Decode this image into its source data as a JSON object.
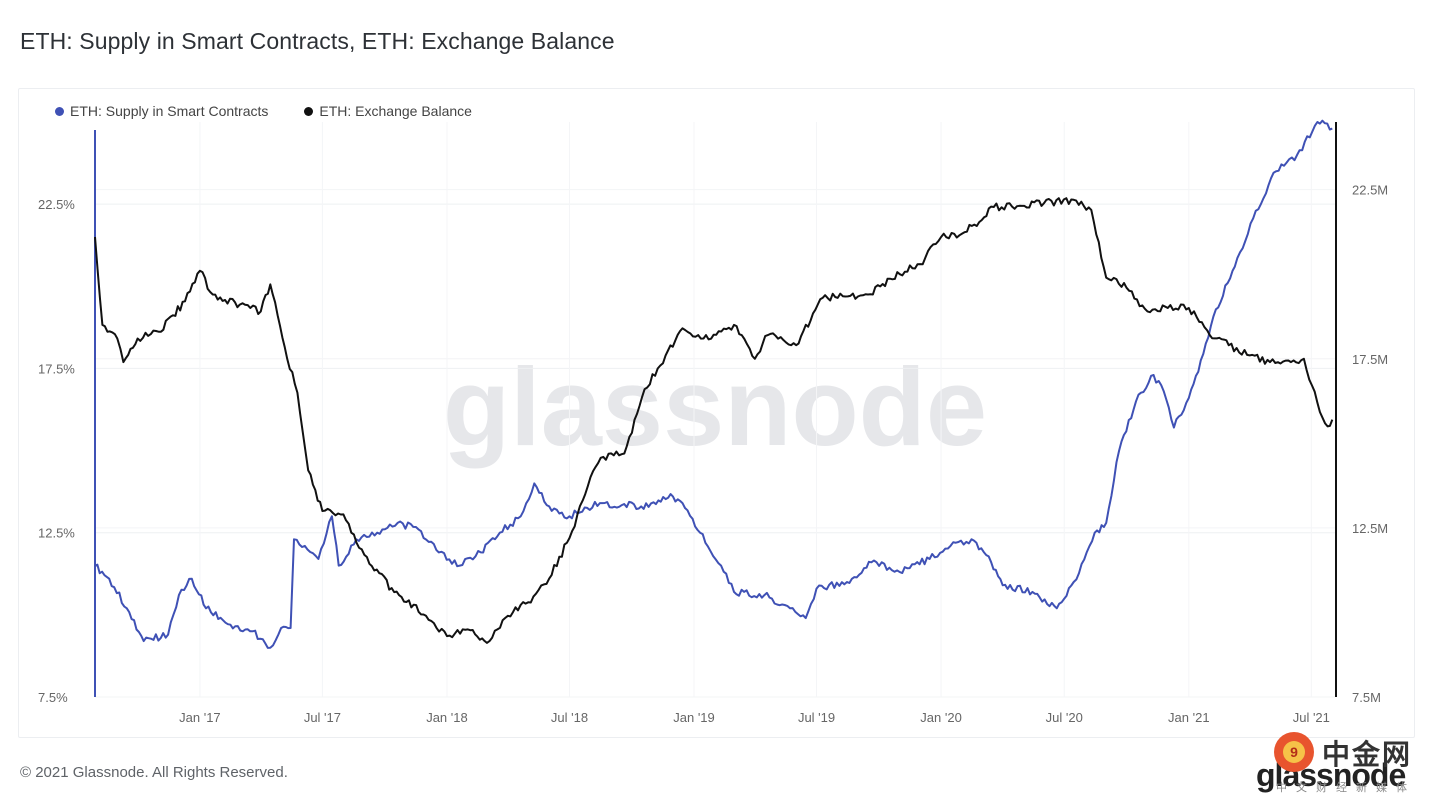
{
  "header": {
    "title": "ETH: Supply in Smart Contracts, ETH: Exchange Balance"
  },
  "footer": {
    "copyright": "© 2021 Glassnode. All Rights Reserved."
  },
  "brand": {
    "name": "glassnode",
    "watermark": "glassnode"
  },
  "overlay_watermark": {
    "text": "中金网",
    "sub": "中文财经新媒体"
  },
  "chart_data": {
    "type": "line",
    "title": "ETH: Supply in Smart Contracts, ETH: Exchange Balance",
    "legend_position": "top-left",
    "grid": true,
    "x_range": [
      "2016-07-30",
      "2021-08-05"
    ],
    "x_ticks": [
      {
        "date": "2017-01-01",
        "label": "Jan '17"
      },
      {
        "date": "2017-07-01",
        "label": "Jul '17"
      },
      {
        "date": "2018-01-01",
        "label": "Jan '18"
      },
      {
        "date": "2018-07-01",
        "label": "Jul '18"
      },
      {
        "date": "2019-01-01",
        "label": "Jan '19"
      },
      {
        "date": "2019-07-01",
        "label": "Jul '19"
      },
      {
        "date": "2020-01-01",
        "label": "Jan '20"
      },
      {
        "date": "2020-07-01",
        "label": "Jul '20"
      },
      {
        "date": "2021-01-01",
        "label": "Jan '21"
      },
      {
        "date": "2021-07-01",
        "label": "Jul '21"
      }
    ],
    "y_left": {
      "range": [
        7.5,
        25.0
      ],
      "ticks": [
        7.5,
        12.5,
        17.5,
        22.5
      ],
      "labels": [
        "7.5%",
        "12.5%",
        "17.5%",
        "22.5%"
      ]
    },
    "y_right": {
      "range": [
        7.5,
        24.5
      ],
      "ticks": [
        7.5,
        12.5,
        17.5,
        22.5
      ],
      "labels": [
        "7.5M",
        "12.5M",
        "17.5M",
        "22.5M"
      ]
    },
    "series": [
      {
        "name": "ETH: Supply in Smart Contracts",
        "axis": "left",
        "color": "#3f51b5",
        "points": [
          [
            "2016-07-30",
            11.5
          ],
          [
            "2016-08-20",
            11.1
          ],
          [
            "2016-09-15",
            10.2
          ],
          [
            "2016-10-10",
            9.2
          ],
          [
            "2016-11-15",
            9.4
          ],
          [
            "2016-12-01",
            10.6
          ],
          [
            "2016-12-20",
            11.1
          ],
          [
            "2017-01-10",
            10.2
          ],
          [
            "2017-02-15",
            9.7
          ],
          [
            "2017-03-20",
            9.5
          ],
          [
            "2017-04-15",
            9.0
          ],
          [
            "2017-05-01",
            9.6
          ],
          [
            "2017-05-15",
            9.6
          ],
          [
            "2017-05-20",
            12.3
          ],
          [
            "2017-06-05",
            12.1
          ],
          [
            "2017-06-25",
            11.7
          ],
          [
            "2017-07-15",
            13.0
          ],
          [
            "2017-07-25",
            11.5
          ],
          [
            "2017-08-20",
            12.3
          ],
          [
            "2017-09-20",
            12.5
          ],
          [
            "2017-10-20",
            12.8
          ],
          [
            "2017-11-20",
            12.6
          ],
          [
            "2017-12-20",
            11.9
          ],
          [
            "2018-01-20",
            11.5
          ],
          [
            "2018-02-20",
            11.9
          ],
          [
            "2018-03-20",
            12.5
          ],
          [
            "2018-04-20",
            13.0
          ],
          [
            "2018-05-10",
            14.0
          ],
          [
            "2018-06-01",
            13.3
          ],
          [
            "2018-07-01",
            13.0
          ],
          [
            "2018-08-15",
            13.4
          ],
          [
            "2018-10-15",
            13.3
          ],
          [
            "2018-12-01",
            13.6
          ],
          [
            "2018-12-15",
            13.4
          ],
          [
            "2019-01-10",
            12.5
          ],
          [
            "2019-02-10",
            11.5
          ],
          [
            "2019-03-01",
            10.7
          ],
          [
            "2019-04-15",
            10.6
          ],
          [
            "2019-05-15",
            10.3
          ],
          [
            "2019-06-15",
            9.9
          ],
          [
            "2019-07-01",
            10.8
          ],
          [
            "2019-08-15",
            11.0
          ],
          [
            "2019-09-20",
            11.6
          ],
          [
            "2019-11-01",
            11.3
          ],
          [
            "2019-12-15",
            11.7
          ],
          [
            "2020-01-15",
            12.1
          ],
          [
            "2020-02-15",
            12.3
          ],
          [
            "2020-03-15",
            11.6
          ],
          [
            "2020-04-01",
            10.9
          ],
          [
            "2020-05-15",
            10.7
          ],
          [
            "2020-06-20",
            10.2
          ],
          [
            "2020-07-15",
            11.0
          ],
          [
            "2020-08-15",
            12.5
          ],
          [
            "2020-09-01",
            12.8
          ],
          [
            "2020-09-20",
            15.0
          ],
          [
            "2020-10-15",
            16.5
          ],
          [
            "2020-11-10",
            17.3
          ],
          [
            "2020-11-25",
            16.8
          ],
          [
            "2020-12-10",
            15.7
          ],
          [
            "2021-01-01",
            16.6
          ],
          [
            "2021-01-15",
            17.4
          ],
          [
            "2021-02-10",
            19.3
          ],
          [
            "2021-03-10",
            20.6
          ],
          [
            "2021-04-10",
            22.3
          ],
          [
            "2021-05-10",
            23.5
          ],
          [
            "2021-06-10",
            24.0
          ],
          [
            "2021-07-10",
            25.0
          ],
          [
            "2021-08-01",
            24.8
          ]
        ]
      },
      {
        "name": "ETH: Exchange Balance",
        "axis": "right",
        "color": "#111111",
        "points": [
          [
            "2016-07-30",
            21.1
          ],
          [
            "2016-08-10",
            18.5
          ],
          [
            "2016-09-01",
            18.1
          ],
          [
            "2016-09-10",
            17.4
          ],
          [
            "2016-10-01",
            18.1
          ],
          [
            "2016-11-01",
            18.3
          ],
          [
            "2016-12-10",
            19.2
          ],
          [
            "2017-01-01",
            20.1
          ],
          [
            "2017-01-20",
            19.4
          ],
          [
            "2017-03-01",
            19.1
          ],
          [
            "2017-04-01",
            18.9
          ],
          [
            "2017-04-15",
            19.7
          ],
          [
            "2017-05-10",
            17.5
          ],
          [
            "2017-05-25",
            16.5
          ],
          [
            "2017-06-10",
            14.2
          ],
          [
            "2017-07-01",
            13.0
          ],
          [
            "2017-08-01",
            12.9
          ],
          [
            "2017-09-01",
            11.7
          ],
          [
            "2017-10-15",
            10.6
          ],
          [
            "2017-12-01",
            9.9
          ],
          [
            "2018-01-01",
            9.3
          ],
          [
            "2018-02-01",
            9.5
          ],
          [
            "2018-03-01",
            9.1
          ],
          [
            "2018-04-01",
            9.9
          ],
          [
            "2018-05-01",
            10.3
          ],
          [
            "2018-06-01",
            11.0
          ],
          [
            "2018-07-01",
            12.2
          ],
          [
            "2018-08-01",
            14.0
          ],
          [
            "2018-08-20",
            14.6
          ],
          [
            "2018-09-20",
            14.7
          ],
          [
            "2018-10-20",
            16.6
          ],
          [
            "2018-11-20",
            17.6
          ],
          [
            "2018-12-15",
            18.4
          ],
          [
            "2019-01-15",
            18.1
          ],
          [
            "2019-03-01",
            18.5
          ],
          [
            "2019-04-01",
            17.5
          ],
          [
            "2019-04-20",
            18.2
          ],
          [
            "2019-06-01",
            17.9
          ],
          [
            "2019-07-10",
            19.3
          ],
          [
            "2019-09-15",
            19.4
          ],
          [
            "2019-11-01",
            20.0
          ],
          [
            "2019-12-01",
            20.3
          ],
          [
            "2020-01-01",
            21.1
          ],
          [
            "2020-02-01",
            21.2
          ],
          [
            "2020-03-01",
            21.6
          ],
          [
            "2020-03-15",
            22.0
          ],
          [
            "2020-04-15",
            22.0
          ],
          [
            "2020-06-01",
            22.1
          ],
          [
            "2020-07-15",
            22.2
          ],
          [
            "2020-08-10",
            21.9
          ],
          [
            "2020-09-01",
            19.9
          ],
          [
            "2020-10-01",
            19.6
          ],
          [
            "2020-11-01",
            18.9
          ],
          [
            "2020-12-01",
            19.0
          ],
          [
            "2021-01-01",
            19.0
          ],
          [
            "2021-02-01",
            18.2
          ],
          [
            "2021-03-01",
            17.9
          ],
          [
            "2021-04-01",
            17.6
          ],
          [
            "2021-05-01",
            17.4
          ],
          [
            "2021-06-01",
            17.4
          ],
          [
            "2021-06-20",
            17.5
          ],
          [
            "2021-07-10",
            16.2
          ],
          [
            "2021-07-25",
            15.5
          ],
          [
            "2021-08-01",
            15.7
          ]
        ]
      }
    ]
  }
}
